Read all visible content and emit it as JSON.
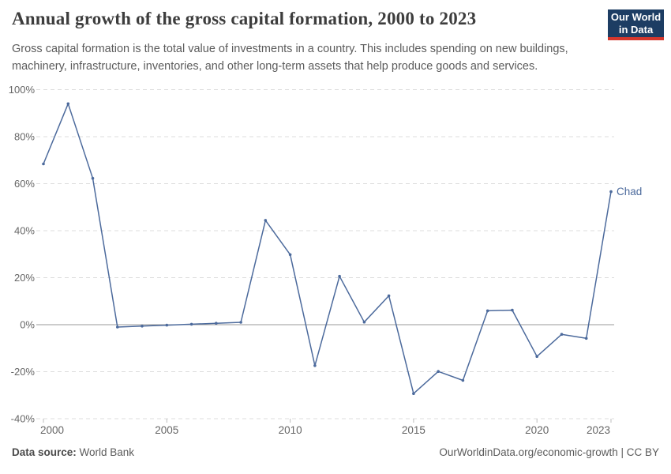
{
  "header": {
    "title": "Annual growth of the gross capital formation, 2000 to 2023",
    "subtitle": "Gross capital formation is the total value of investments in a country. This includes spending on new buildings, machinery, infrastructure, inventories, and other long-term assets that help produce goods and services.",
    "logo": {
      "line1": "Our World",
      "line2": "in Data"
    }
  },
  "colors": {
    "line": "#4c6a9c",
    "entity_label": "#4c6a9c",
    "grid": "#dcdcdc",
    "zero_line": "#9a9a9a",
    "axis_text": "#666666",
    "tick_mark": "#bdbdbd",
    "logo_bg": "#1d3d63",
    "logo_stripe": "#d6372c",
    "title_text": "#3d3d3d",
    "subtitle_text": "#5b5b5b"
  },
  "chart_data": {
    "type": "line",
    "title": "Annual growth of the gross capital formation, 2000 to 2023",
    "xlabel": "",
    "ylabel": "",
    "xlim": [
      2000,
      2023
    ],
    "ylim": [
      -40,
      100
    ],
    "x_ticks": [
      2000,
      2005,
      2010,
      2015,
      2020,
      2023
    ],
    "y_ticks": [
      100,
      80,
      60,
      40,
      20,
      0,
      -20,
      -40
    ],
    "y_tick_suffix": "%",
    "grid": "dashed horizontal gridlines, solid zero line",
    "legend_position": "end-of-line label",
    "series": [
      {
        "name": "Chad",
        "color": "#4c6a9c",
        "x": [
          2000,
          2001,
          2002,
          2003,
          2004,
          2005,
          2006,
          2007,
          2008,
          2009,
          2010,
          2011,
          2012,
          2013,
          2014,
          2015,
          2016,
          2017,
          2018,
          2019,
          2020,
          2021,
          2022,
          2023
        ],
        "values": [
          68.4,
          94.0,
          62.3,
          -1.0,
          -0.6,
          -0.2,
          0.2,
          0.6,
          1.0,
          44.4,
          29.8,
          -17.4,
          20.6,
          1.1,
          12.3,
          -29.3,
          -19.9,
          -23.7,
          5.9,
          6.2,
          -13.5,
          -4.1,
          -5.8,
          56.6
        ]
      }
    ]
  },
  "footer": {
    "source_label": "Data source:",
    "source_value": " World Bank",
    "credit": "OurWorldinData.org/economic-growth | CC BY"
  }
}
